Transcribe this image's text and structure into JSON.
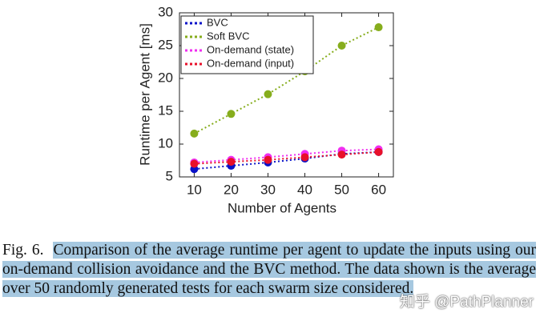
{
  "chart_data": {
    "type": "line",
    "xlabel": "Number of Agents",
    "ylabel": "Runtime per Agent [ms]",
    "x": [
      10,
      20,
      30,
      40,
      50,
      60
    ],
    "series": [
      {
        "name": "BVC",
        "color": "#0a12c8",
        "values": [
          6.2,
          6.7,
          7.2,
          7.8,
          8.5,
          8.8
        ]
      },
      {
        "name": "Soft BVC",
        "color": "#86ad1c",
        "values": [
          11.6,
          14.6,
          17.6,
          21.1,
          25.0,
          27.8
        ]
      },
      {
        "name": "On-demand (state)",
        "color": "#f02ef0",
        "values": [
          7.2,
          7.6,
          8.0,
          8.5,
          9.0,
          9.2
        ]
      },
      {
        "name": "On-demand (input)",
        "color": "#e8102a",
        "values": [
          7.0,
          7.3,
          7.6,
          8.0,
          8.4,
          8.8
        ]
      }
    ],
    "xlim": [
      6,
      64
    ],
    "xticks": [
      10,
      20,
      30,
      40,
      50,
      60
    ],
    "ylim": [
      5,
      30
    ],
    "yticks": [
      5,
      10,
      15,
      20,
      25,
      30
    ],
    "legend": "upper-left"
  },
  "caption": {
    "label": "Fig. 6.",
    "text": "Comparison of the average runtime per agent to update the inputs using our on-demand collision avoidance and the BVC method. The data shown is the average over 50 randomly generated tests for each swarm size considered."
  },
  "watermark": "知乎 @PathPlanner"
}
